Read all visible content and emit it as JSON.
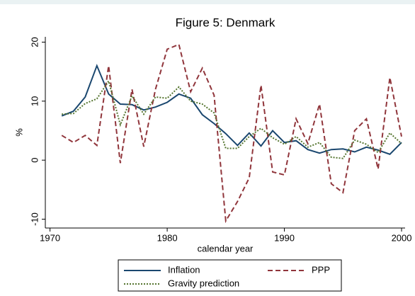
{
  "chart_data": {
    "type": "line",
    "title": "Figure 5: Denmark",
    "x_label": "calendar year",
    "y_label": "%",
    "x": [
      1971,
      1972,
      1973,
      1974,
      1975,
      1976,
      1977,
      1978,
      1979,
      1980,
      1981,
      1982,
      1983,
      1984,
      1985,
      1986,
      1987,
      1988,
      1989,
      1990,
      1991,
      1992,
      1993,
      1994,
      1995,
      1996,
      1997,
      1998,
      1999,
      2000
    ],
    "series": [
      {
        "name": "Inflation",
        "color": "#1a476f",
        "dash": "solid",
        "values": [
          7.5,
          8.3,
          10.7,
          16,
          11.2,
          9.5,
          9.4,
          8.5,
          9,
          9.8,
          11.2,
          10.5,
          7.7,
          6.2,
          4.5,
          2.5,
          4.6,
          2.4,
          5.0,
          3.0,
          3.3,
          1.8,
          1.2,
          1.8,
          1.9,
          1.4,
          2.2,
          1.7,
          1.0,
          3.0
        ]
      },
      {
        "name": "PPP",
        "color": "#90353b",
        "dash": "dashed",
        "values": [
          4.2,
          3.0,
          4.2,
          2.5,
          16,
          -0.5,
          12,
          2.3,
          12,
          18.8,
          19.6,
          11.6,
          15.6,
          11,
          -10.3,
          -7,
          -3,
          12.7,
          -2,
          -2.5,
          7,
          2.8,
          9.5,
          -4,
          -5.5,
          5,
          7,
          -1.5,
          14,
          4
        ]
      },
      {
        "name": "Gravity prediction",
        "color": "#55752f",
        "dash": "dotted",
        "values": [
          7.8,
          7.9,
          9.6,
          10.4,
          13.4,
          6,
          10.9,
          7.8,
          10.7,
          10.5,
          12.4,
          10,
          9.5,
          8,
          2.0,
          2.0,
          4.0,
          5.4,
          3.8,
          2.7,
          4.0,
          2.2,
          3.0,
          0.5,
          0.3,
          3.4,
          2.7,
          1.3,
          4.6,
          2.8
        ]
      }
    ],
    "xlim": [
      1969.6,
      2000.3
    ],
    "xticks": [
      1970,
      1980,
      1990,
      2000
    ],
    "ylim": [
      -11.5,
      20.9
    ],
    "yticks": [
      -10,
      0,
      10,
      20
    ],
    "grid": false,
    "legend": "bottom"
  }
}
